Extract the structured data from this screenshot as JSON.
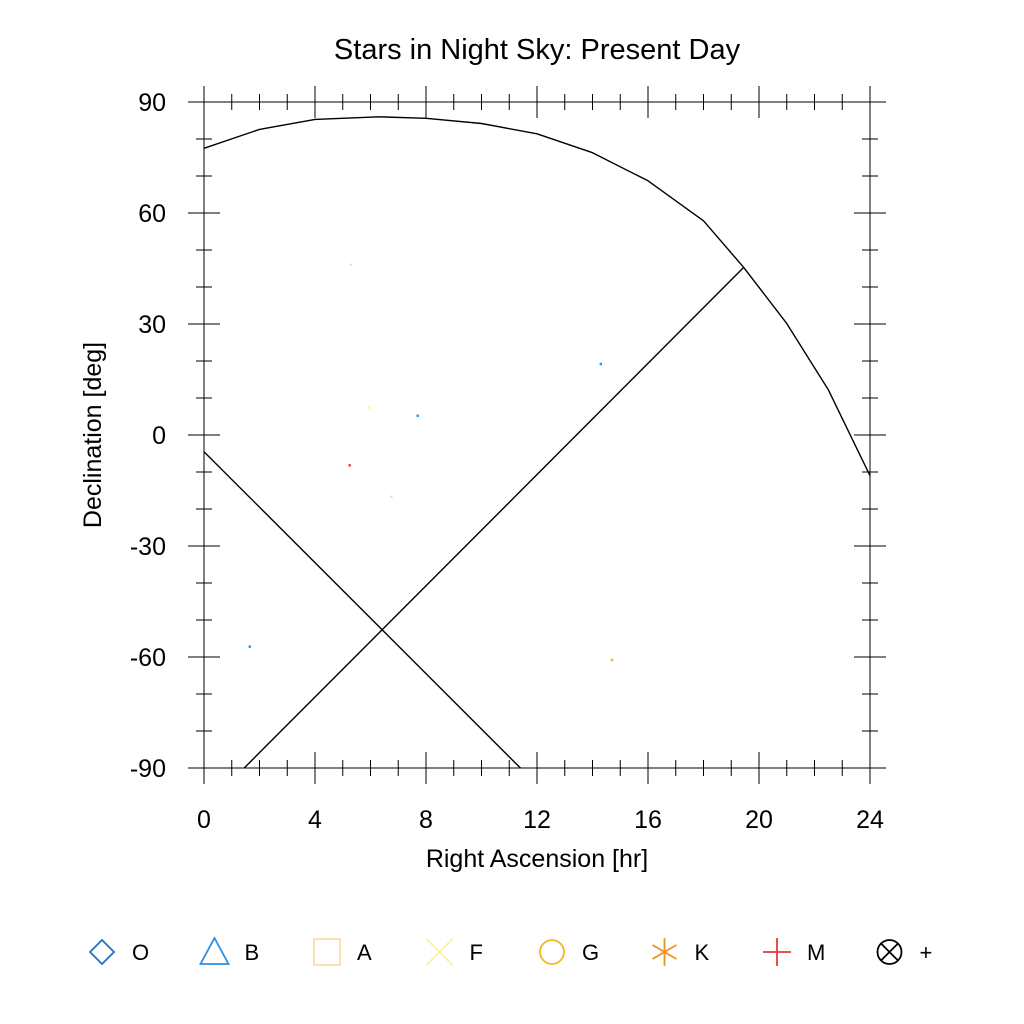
{
  "chart_data": {
    "type": "scatter",
    "title": "Stars in Night Sky: Present Day",
    "xlabel": "Right Ascension [hr]",
    "ylabel": "Declination [deg]",
    "xlim": [
      0,
      24
    ],
    "ylim": [
      -90,
      90
    ],
    "x_ticks": [
      0,
      4,
      8,
      12,
      16,
      20,
      24
    ],
    "y_ticks": [
      90,
      60,
      30,
      0,
      -30,
      -60,
      -90
    ],
    "grid": false,
    "legend_position": "bottom",
    "series": [
      {
        "name": "O",
        "marker": "diamond",
        "color": "#1f6fc5",
        "points": []
      },
      {
        "name": "B",
        "marker": "triangle",
        "color": "#2d8fe3",
        "points": [
          [
            7.7,
            5.2
          ],
          [
            14.3,
            19.2
          ],
          [
            1.65,
            -57.2
          ]
        ]
      },
      {
        "name": "A",
        "marker": "square",
        "color": "#f7dfa8",
        "points": [
          [
            5.3,
            46.0
          ],
          [
            6.75,
            -16.7
          ]
        ]
      },
      {
        "name": "F",
        "marker": "x",
        "color": "#fcefa6",
        "points": [
          [
            5.95,
            7.4
          ]
        ]
      },
      {
        "name": "G",
        "marker": "circle",
        "color": "#f5b61e",
        "points": [
          [
            14.7,
            -60.8
          ]
        ]
      },
      {
        "name": "K",
        "marker": "asterisk",
        "color": "#f5901e",
        "points": []
      },
      {
        "name": "M",
        "marker": "plus",
        "color": "#e8383b",
        "points": [
          [
            5.25,
            -8.2
          ]
        ]
      },
      {
        "name": "+",
        "marker": "circle-x",
        "color": "#000000",
        "points": []
      }
    ],
    "curves": [
      {
        "name": "",
        "points": [
          [
            0,
            77.5
          ],
          [
            2,
            82.6
          ],
          [
            4,
            85.3
          ],
          [
            6.3,
            86.0
          ],
          [
            8,
            85.6
          ],
          [
            10,
            84.2
          ],
          [
            12,
            81.4
          ],
          [
            14,
            76.3
          ],
          [
            16,
            68.7
          ],
          [
            18,
            57.9
          ],
          [
            19.45,
            45.3
          ],
          [
            21,
            30.1
          ],
          [
            22.5,
            12.2
          ],
          [
            24,
            -11.0
          ]
        ]
      },
      {
        "name": "",
        "points": [
          [
            1.45,
            -90
          ],
          [
            19.45,
            45.3
          ]
        ]
      },
      {
        "name": "",
        "points": [
          [
            0,
            -4.5
          ],
          [
            11.4,
            -90
          ]
        ]
      }
    ]
  }
}
